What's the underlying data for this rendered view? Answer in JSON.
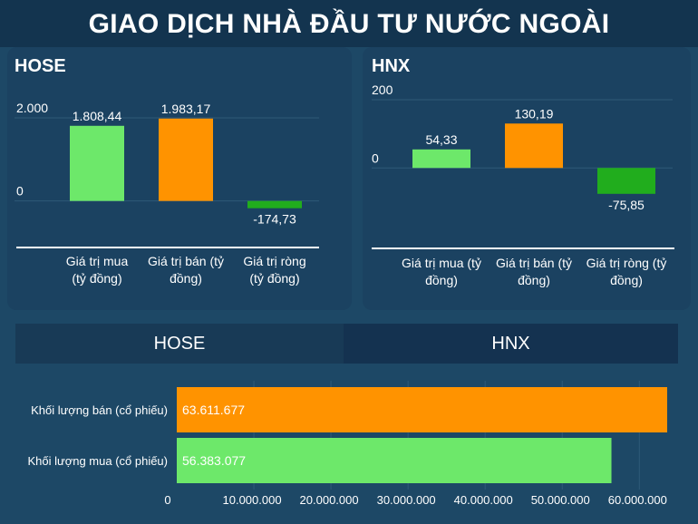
{
  "title": "GIAO DỊCH NHÀ ĐẦU TƯ NƯỚC NGOÀI",
  "tabs": [
    "HOSE",
    "HNX"
  ],
  "colors": {
    "buy": "#6de86a",
    "sell": "#ff9300",
    "net_negative": "#21ad1d",
    "axis": "#ffffff",
    "gridline": "#2f5a78"
  },
  "chart_data": [
    {
      "type": "bar",
      "title": "HOSE",
      "categories": [
        "Giá trị mua (tỷ đồng)",
        "Giá trị bán (tỷ đồng)",
        "Giá trị ròng (tỷ đồng)"
      ],
      "category_lines": [
        [
          "Giá trị mua",
          "(tỷ đồng)"
        ],
        [
          "Giá trị bán (tỷ",
          "đồng)"
        ],
        [
          "Giá trị ròng",
          "(tỷ đồng)"
        ]
      ],
      "values": [
        1808.44,
        1983.17,
        -174.73
      ],
      "value_labels": [
        "1.808,44",
        "1.983,17",
        "-174,73"
      ],
      "color_keys": [
        "buy",
        "sell",
        "net_negative"
      ],
      "yticks": [
        0,
        2000
      ],
      "ytick_labels": [
        "0",
        "2.000"
      ],
      "ylim": [
        -400,
        2000
      ]
    },
    {
      "type": "bar",
      "title": "HNX",
      "categories": [
        "Giá trị mua (tỷ đồng)",
        "Giá trị bán (tỷ đồng)",
        "Giá trị ròng (tỷ đồng)"
      ],
      "category_lines": [
        [
          "Giá trị mua (tỷ",
          "đồng)"
        ],
        [
          "Giá trị bán (tỷ",
          "đồng)"
        ],
        [
          "Giá trị ròng (tỷ",
          "đồng)"
        ]
      ],
      "values": [
        54.33,
        130.19,
        -75.85
      ],
      "value_labels": [
        "54,33",
        "130,19",
        "-75,85"
      ],
      "color_keys": [
        "buy",
        "sell",
        "net_negative"
      ],
      "yticks": [
        0,
        200
      ],
      "ytick_labels": [
        "0",
        "200"
      ],
      "ylim": [
        -180,
        200
      ]
    },
    {
      "type": "bar",
      "orientation": "horizontal",
      "title": "HOSE",
      "categories": [
        "Khối lượng bán (cổ phiếu)",
        "Khối lượng mua (cổ phiếu)"
      ],
      "values": [
        63611677,
        56383077
      ],
      "value_labels": [
        "63.611.677",
        "56.383.077"
      ],
      "color_keys": [
        "sell",
        "buy"
      ],
      "xticks": [
        0,
        10000000,
        20000000,
        30000000,
        40000000,
        50000000,
        60000000
      ],
      "xtick_labels": [
        "0",
        "10.000.000",
        "20.000.000",
        "30.000.000",
        "40.000.000",
        "50.000.000",
        "60.000.000"
      ],
      "xlim": [
        0,
        63611677
      ]
    }
  ]
}
